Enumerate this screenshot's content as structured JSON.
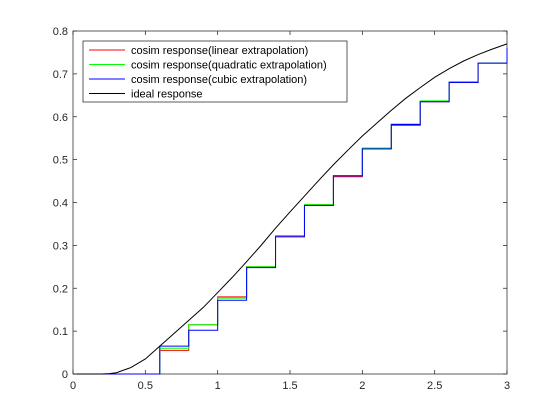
{
  "chart_data": {
    "type": "line",
    "title": "",
    "xlabel": "",
    "ylabel": "",
    "xlim": [
      0,
      3
    ],
    "ylim": [
      0,
      0.8
    ],
    "xticks": [
      0,
      0.5,
      1,
      1.5,
      2,
      2.5,
      3
    ],
    "yticks": [
      0,
      0.1,
      0.2,
      0.3,
      0.4,
      0.5,
      0.6,
      0.7,
      0.8
    ],
    "xtick_labels": [
      "0",
      "0.5",
      "1",
      "1.5",
      "2",
      "2.5",
      "3"
    ],
    "ytick_labels": [
      "0",
      "0.1",
      "0.2",
      "0.3",
      "0.4",
      "0.5",
      "0.6",
      "0.7",
      "0.8"
    ],
    "grid": false,
    "legend_position": "top-left",
    "series": [
      {
        "name": "cosim response(linear extrapolation)",
        "color": "#ff0000",
        "style": "step",
        "x": [
          0,
          0.6,
          0.8,
          1.0,
          1.2,
          1.4,
          1.6,
          1.8,
          2.0,
          2.2,
          2.4,
          2.6,
          2.8,
          3.0
        ],
        "y": [
          0,
          0.055,
          0.115,
          0.18,
          0.25,
          0.32,
          0.395,
          0.46,
          0.525,
          0.58,
          0.635,
          0.68,
          0.725,
          0.76
        ]
      },
      {
        "name": "cosim response(quadratic extrapolation)",
        "color": "#00ff00",
        "style": "step",
        "x": [
          0,
          0.6,
          0.8,
          1.0,
          1.2,
          1.4,
          1.6,
          1.8,
          2.0,
          2.2,
          2.4,
          2.6,
          2.8,
          3.0
        ],
        "y": [
          0,
          0.06,
          0.115,
          0.177,
          0.25,
          0.323,
          0.395,
          0.463,
          0.527,
          0.583,
          0.637,
          0.682,
          0.725,
          0.76
        ]
      },
      {
        "name": "cosim response(cubic extrapolation)",
        "color": "#0000ff",
        "style": "step",
        "x": [
          0,
          0.6,
          0.8,
          1.0,
          1.2,
          1.4,
          1.6,
          1.8,
          2.0,
          2.2,
          2.4,
          2.6,
          2.8,
          3.0
        ],
        "y": [
          0,
          0.065,
          0.102,
          0.172,
          0.248,
          0.32,
          0.393,
          0.462,
          0.525,
          0.582,
          0.635,
          0.68,
          0.725,
          0.76
        ]
      },
      {
        "name": "ideal response",
        "color": "#000000",
        "style": "line",
        "x": [
          0,
          0.2,
          0.25,
          0.3,
          0.4,
          0.5,
          0.6,
          0.7,
          0.8,
          0.9,
          1.0,
          1.1,
          1.2,
          1.3,
          1.4,
          1.5,
          1.6,
          1.7,
          1.8,
          1.9,
          2.0,
          2.1,
          2.2,
          2.3,
          2.4,
          2.5,
          2.6,
          2.7,
          2.8,
          2.9,
          3.0
        ],
        "y": [
          0,
          0,
          0.001,
          0.003,
          0.015,
          0.035,
          0.065,
          0.095,
          0.125,
          0.155,
          0.19,
          0.225,
          0.262,
          0.3,
          0.34,
          0.378,
          0.415,
          0.452,
          0.488,
          0.522,
          0.555,
          0.585,
          0.615,
          0.643,
          0.668,
          0.692,
          0.712,
          0.73,
          0.745,
          0.758,
          0.77
        ]
      }
    ]
  }
}
